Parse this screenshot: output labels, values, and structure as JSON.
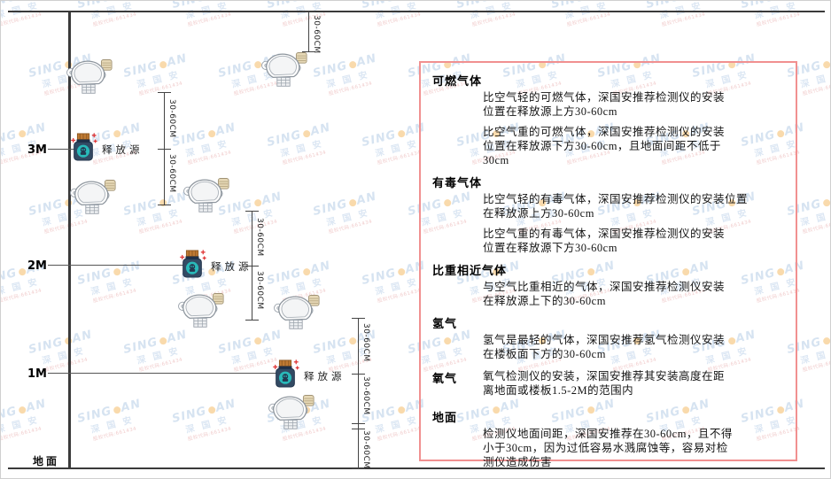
{
  "watermark": {
    "logo_prefix": "SING",
    "logo_suffix": "AN",
    "cjk": "深 国 安",
    "subtext": "股权代码:661434",
    "logo_color": "#9fbede",
    "dot_color": "#f2a93c",
    "subtext_color": "#dd8585"
  },
  "diagram": {
    "height_labels": [
      {
        "text": "3M"
      },
      {
        "text": "2M"
      },
      {
        "text": "1M"
      }
    ],
    "ground_label": "地面",
    "dimension_label": "30-60CM",
    "source_label": "释放源",
    "icons": {
      "gas-detector-icon": "fixed gas detector (dome body, side sensor, bottom grille)",
      "release-source-icon": "gas release source canister (orange cap, teal badge)"
    },
    "colors": {
      "axis_line": "#3a3a3a",
      "dimension_line": "#444444",
      "source_body": "#324a63",
      "source_cap": "#bf7a33",
      "source_badge": "#29b9b9",
      "spark_red": "#e03a3a"
    }
  },
  "panel": {
    "border_color": "#f19090",
    "sections": [
      {
        "title": "可燃气体",
        "paragraphs": [
          [
            "比空气轻的可燃气体，深国安推荐检测仪的安装",
            "位置在释放源上方30-60cm"
          ],
          [
            "比空气重的可燃气体，深国安推荐检测仪的安装",
            "位置在释放源下方30-60cm，且地面间距不低于",
            "30cm"
          ]
        ]
      },
      {
        "title": "有毒气体",
        "paragraphs": [
          [
            "比空气轻的有毒气体，深国安推荐检测仪的安装位置",
            "在释放源上方30-60cm"
          ],
          [
            "比空气重的有毒气体，深国安推荐检测仪的安装",
            "位置在释放源下方30-60cm"
          ]
        ]
      },
      {
        "title": "比重相近气体",
        "paragraphs": [
          [
            "与空气比重相近的气体，深国安推荐检测仪安装",
            "在释放源上下的30-60cm"
          ]
        ]
      },
      {
        "title": "氢气",
        "paragraphs": [
          [
            "氢气是最轻的气体，深国安推荐氢气检测仪安装",
            "在楼板面下方的30-60cm"
          ]
        ]
      },
      {
        "title": "氧气",
        "inline_title": true,
        "paragraphs": [
          [
            "氧气检测仪的安装，深国安推荐其安装高度在距",
            "离地面或楼板1.5-2M的范围内"
          ]
        ]
      },
      {
        "title": "地面",
        "paragraphs": [
          [
            "检测仪地面间距，深国安推荐在30-60cm，且不得",
            "小于30cm，因为过低容易水溅腐蚀等，容易对检",
            "测仪造成伤害"
          ]
        ]
      }
    ]
  }
}
